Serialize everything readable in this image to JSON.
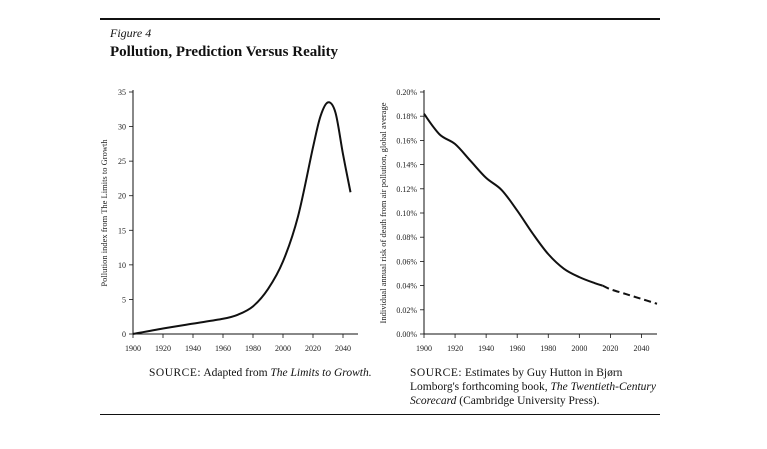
{
  "figure": {
    "label": "Figure 4",
    "title": "Pollution, Prediction Versus Reality"
  },
  "chart_data": [
    {
      "type": "line",
      "ylabel": "Pollution index from The Limits to Growth",
      "ylim": [
        0,
        35
      ],
      "xlim": [
        1900,
        2050
      ],
      "x_ticks": [
        1900,
        1920,
        1940,
        1960,
        1980,
        2000,
        2020,
        2040
      ],
      "x_tick_labels": [
        "1900",
        "1920",
        "1940",
        "1960",
        "1980",
        "2000",
        "2020",
        "2040"
      ],
      "y_ticks": [
        0,
        5,
        10,
        15,
        20,
        25,
        30,
        35
      ],
      "y_tick_labels": [
        "0",
        "5",
        "10",
        "15",
        "20",
        "25",
        "30",
        "35"
      ],
      "series": [
        {
          "x": [
            1900,
            1920,
            1940,
            1960,
            1970,
            1980,
            1990,
            2000,
            2010,
            2020,
            2025,
            2030,
            2035,
            2040,
            2045
          ],
          "y": [
            0,
            0.8,
            1.5,
            2.2,
            2.8,
            4.0,
            6.5,
            10.5,
            17.0,
            27.0,
            31.5,
            33.5,
            32.0,
            26.0,
            20.5
          ],
          "style": "solid"
        }
      ]
    },
    {
      "type": "line",
      "ylabel": "Individual annual risk of death from air pollution, global average",
      "ylim": [
        0,
        0.2
      ],
      "xlim": [
        1900,
        2050
      ],
      "x_ticks": [
        1900,
        1920,
        1940,
        1960,
        1980,
        2000,
        2020,
        2040
      ],
      "x_tick_labels": [
        "1900",
        "1920",
        "1940",
        "1960",
        "1980",
        "2000",
        "2020",
        "2040"
      ],
      "y_ticks": [
        0,
        0.02,
        0.04,
        0.06,
        0.08,
        0.1,
        0.12,
        0.14,
        0.16,
        0.18,
        0.2
      ],
      "y_tick_labels": [
        "0.00%",
        "0.02%",
        "0.04%",
        "0.06%",
        "0.08%",
        "0.10%",
        "0.12%",
        "0.14%",
        "0.16%",
        "0.18%",
        "0.20%"
      ],
      "series": [
        {
          "x": [
            1900,
            1910,
            1920,
            1930,
            1940,
            1950,
            1960,
            1970,
            1980,
            1990,
            2000,
            2010,
            2015
          ],
          "y": [
            0.182,
            0.165,
            0.157,
            0.143,
            0.129,
            0.119,
            0.102,
            0.083,
            0.066,
            0.054,
            0.047,
            0.042,
            0.04
          ],
          "style": "solid"
        },
        {
          "x": [
            2015,
            2020,
            2030,
            2040,
            2050
          ],
          "y": [
            0.04,
            0.037,
            0.033,
            0.029,
            0.025
          ],
          "style": "dashed"
        }
      ]
    }
  ],
  "sources": {
    "left": {
      "label": "SOURCE:",
      "text": "Adapted from",
      "title": "The Limits to Growth."
    },
    "right": {
      "label": "SOURCE:",
      "text_1": "Estimates by Guy Hutton in Bjørn Lomborg's forthcoming book,",
      "title": "The Twentieth-Century Scorecard",
      "text_2": "(Cambridge University Press)."
    }
  }
}
